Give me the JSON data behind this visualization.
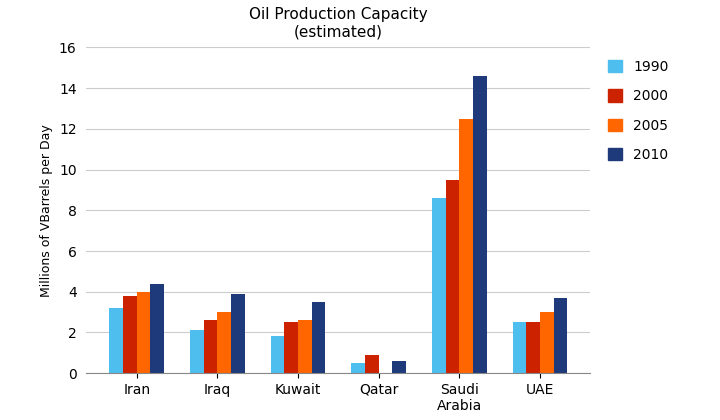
{
  "title": "Oil Production Capacity\n(estimated)",
  "ylabel": "Millions of VBarrels per Day",
  "categories": [
    "Iran",
    "Iraq",
    "Kuwait",
    "Qatar",
    "Saudi\nArabia",
    "UAE"
  ],
  "years": [
    "1990",
    "2000",
    "2005",
    "2010"
  ],
  "values": {
    "Iran": [
      3.2,
      3.8,
      4.0,
      4.4
    ],
    "Iraq": [
      2.1,
      2.6,
      3.0,
      3.9
    ],
    "Kuwait": [
      1.8,
      2.5,
      2.6,
      3.5
    ],
    "Qatar": [
      0.5,
      0.9,
      0.0,
      0.6
    ],
    "Saudi\nArabia": [
      8.6,
      9.5,
      12.5,
      14.6
    ],
    "UAE": [
      2.5,
      2.5,
      3.0,
      3.7
    ]
  },
  "colors": {
    "1990": "#4DBEEE",
    "2000": "#CC2200",
    "2005": "#FF6600",
    "2010": "#1F3A7A"
  },
  "ylim": [
    0,
    16
  ],
  "yticks": [
    0,
    2,
    4,
    6,
    8,
    10,
    12,
    14,
    16
  ],
  "background_color": "#ffffff",
  "bar_width": 0.17,
  "legend_fontsize": 10,
  "title_fontsize": 11,
  "ylabel_fontsize": 9,
  "tick_fontsize": 10
}
